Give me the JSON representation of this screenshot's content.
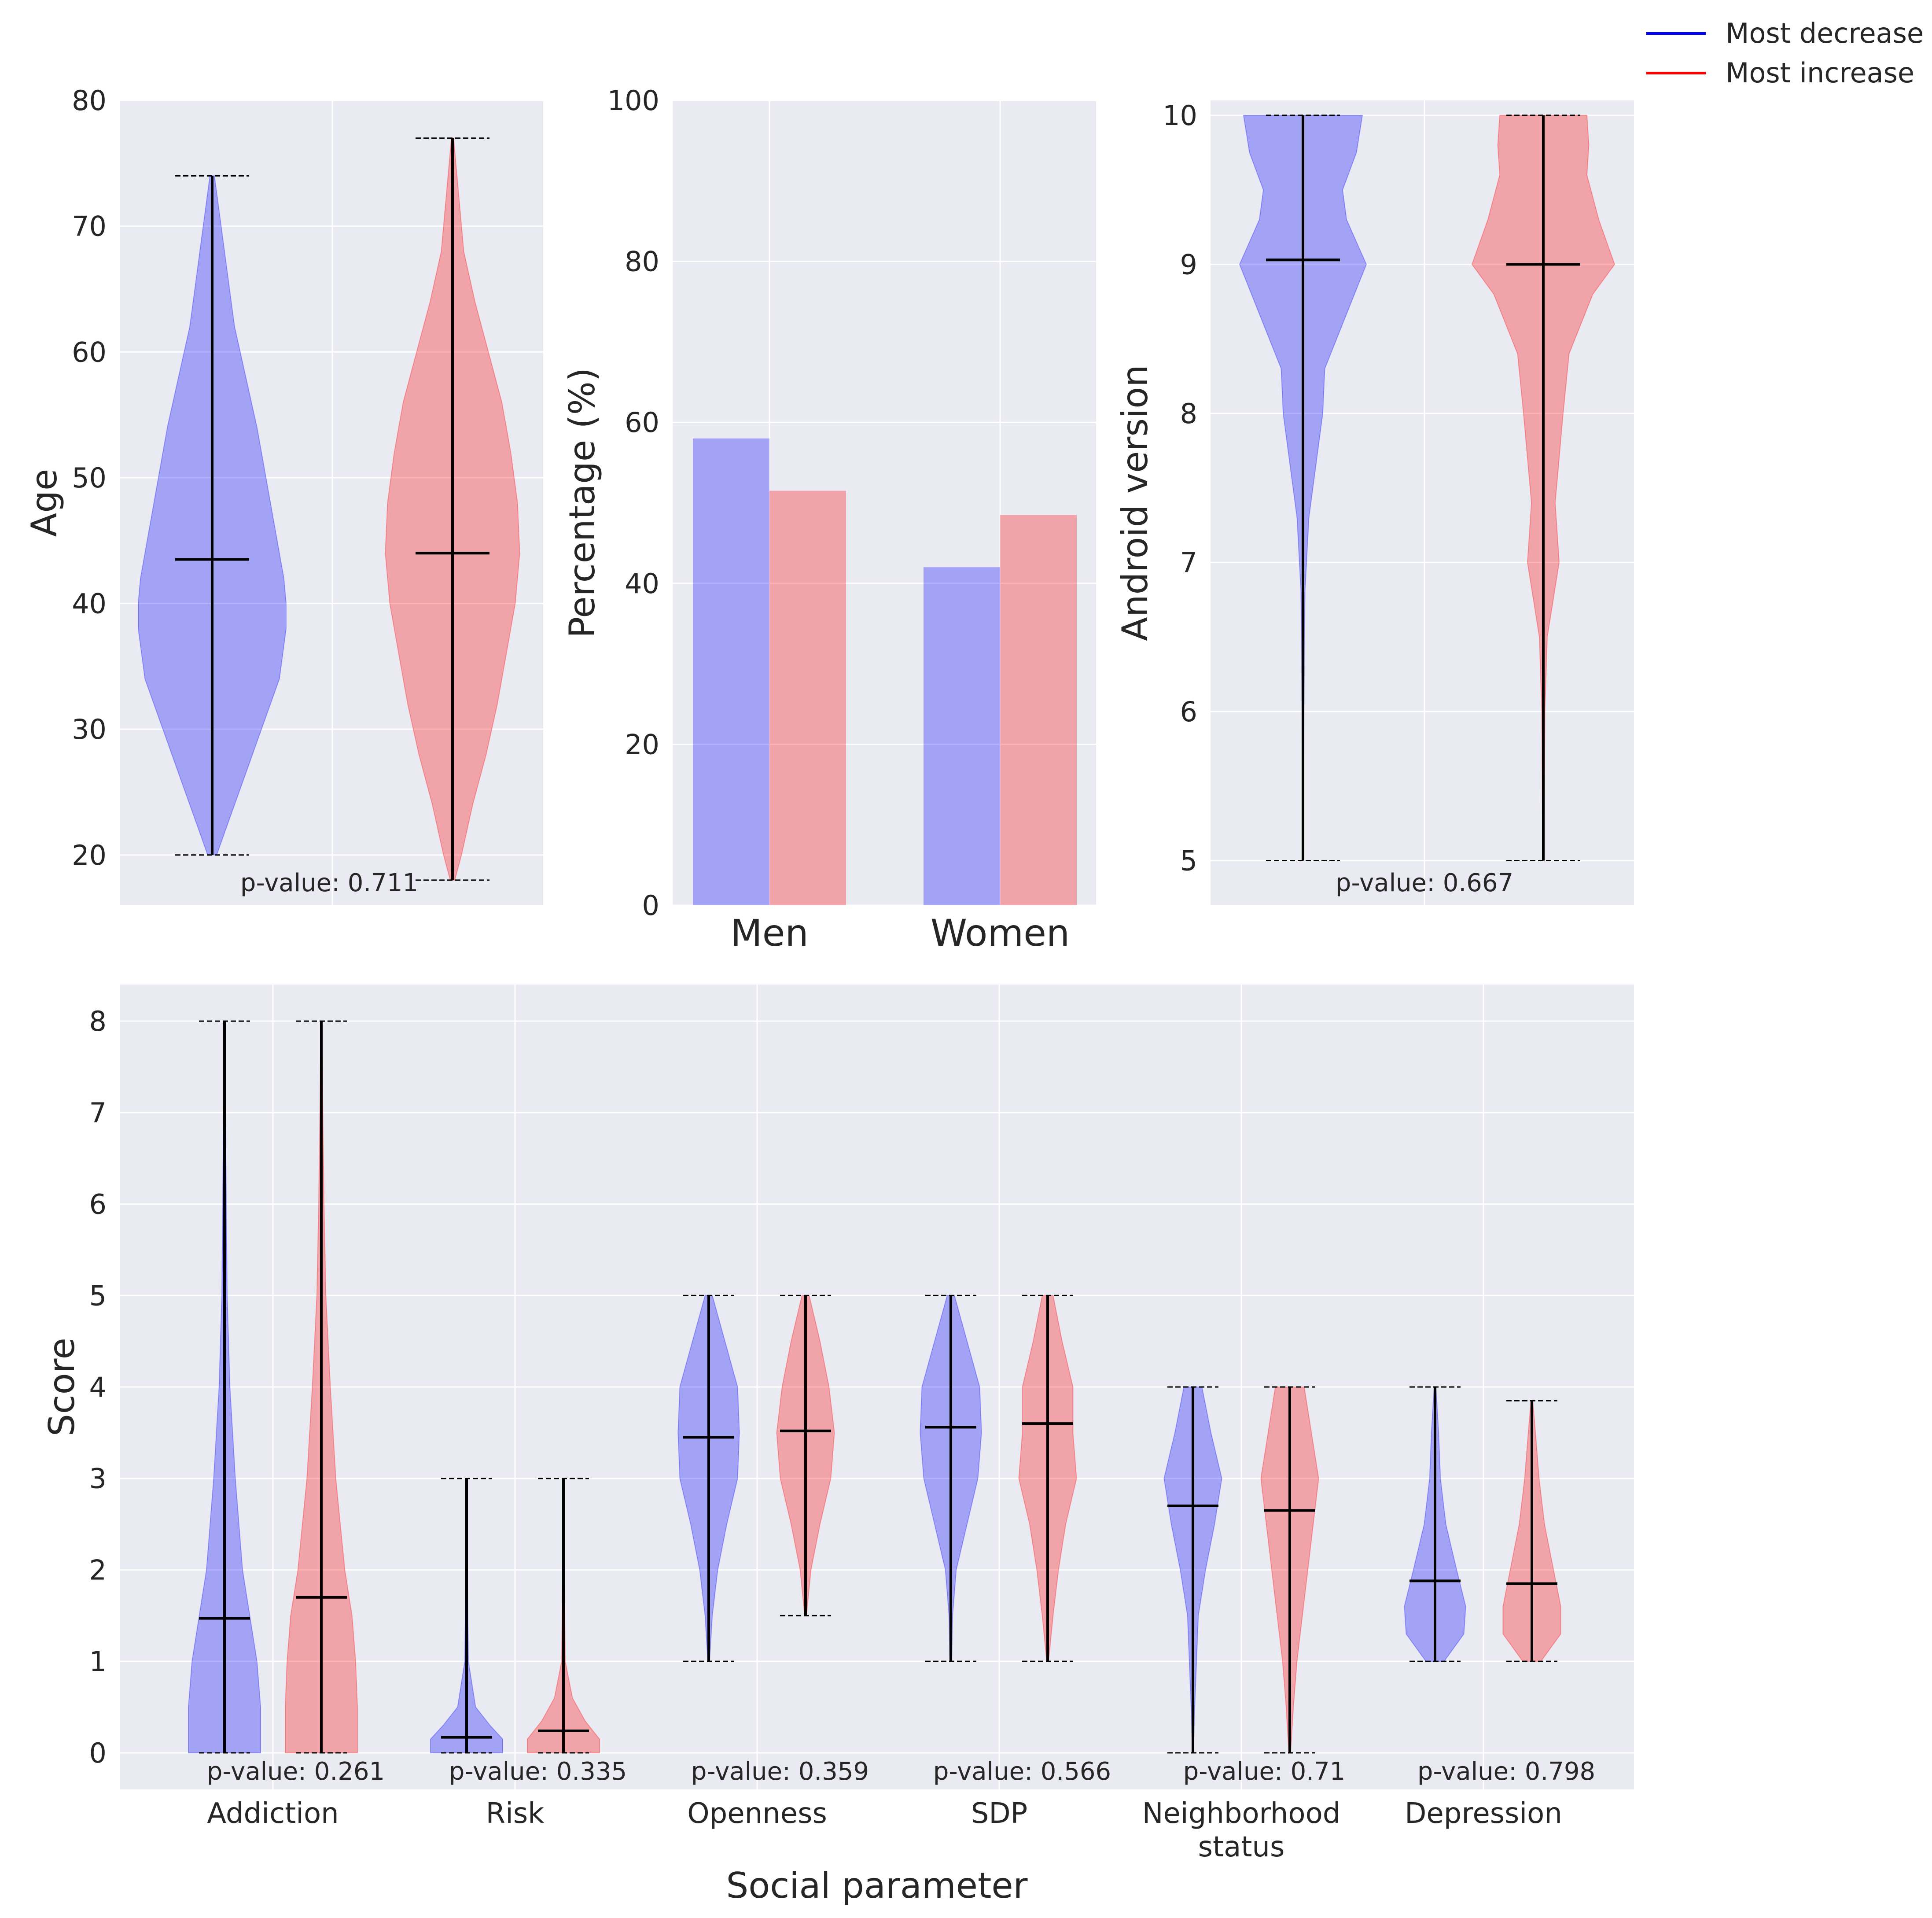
{
  "colors": {
    "decrease": "#0000ff",
    "increase": "#ff0000",
    "panel_bg": "#eaeaf2",
    "grid": "#ffffff",
    "stat_line": "#000000"
  },
  "legend": [
    {
      "label": "Most decrease",
      "color": "#0000ff"
    },
    {
      "label": "Most increase",
      "color": "#ff0000"
    }
  ],
  "chart_data": [
    {
      "id": "age",
      "type": "violin",
      "ylabel": "Age",
      "ylim": [
        16,
        80
      ],
      "yticks": [
        20,
        30,
        40,
        50,
        60,
        70,
        80
      ],
      "p_value_label": "p-value: 0.711",
      "groups": [
        {
          "series": "Most decrease",
          "min": 20,
          "max": 74,
          "mean": 43.5,
          "density": [
            [
              20,
              0.02
            ],
            [
              22,
              0.06
            ],
            [
              26,
              0.14
            ],
            [
              30,
              0.22
            ],
            [
              34,
              0.3
            ],
            [
              38,
              0.33
            ],
            [
              40,
              0.33
            ],
            [
              42,
              0.32
            ],
            [
              46,
              0.28
            ],
            [
              50,
              0.24
            ],
            [
              54,
              0.2
            ],
            [
              58,
              0.15
            ],
            [
              62,
              0.1
            ],
            [
              66,
              0.07
            ],
            [
              70,
              0.04
            ],
            [
              74,
              0.01
            ]
          ]
        },
        {
          "series": "Most increase",
          "min": 18,
          "max": 77,
          "mean": 44,
          "density": [
            [
              18,
              0.01
            ],
            [
              20,
              0.04
            ],
            [
              24,
              0.09
            ],
            [
              28,
              0.15
            ],
            [
              32,
              0.2
            ],
            [
              36,
              0.24
            ],
            [
              40,
              0.28
            ],
            [
              44,
              0.3
            ],
            [
              48,
              0.29
            ],
            [
              52,
              0.26
            ],
            [
              56,
              0.22
            ],
            [
              60,
              0.16
            ],
            [
              64,
              0.1
            ],
            [
              68,
              0.05
            ],
            [
              72,
              0.03
            ],
            [
              75,
              0.015
            ],
            [
              77,
              0.005
            ]
          ]
        }
      ]
    },
    {
      "id": "gender",
      "type": "bar",
      "ylabel": "Percentage (%)",
      "ylim": [
        0,
        100
      ],
      "yticks": [
        0,
        20,
        40,
        60,
        80,
        100
      ],
      "categories": [
        "Men",
        "Women"
      ],
      "series": [
        {
          "name": "Most decrease",
          "values": [
            58,
            42
          ]
        },
        {
          "name": "Most increase",
          "values": [
            51.5,
            48.5
          ]
        }
      ]
    },
    {
      "id": "android",
      "type": "violin",
      "ylabel": "Android version",
      "ylim": [
        4.7,
        10.1
      ],
      "yticks": [
        5,
        6,
        7,
        8,
        9,
        10
      ],
      "p_value_label": "p-value: 0.667",
      "groups": [
        {
          "series": "Most decrease",
          "min": 5,
          "max": 10,
          "mean": 9.03,
          "density": [
            [
              5,
              0.003
            ],
            [
              6,
              0.005
            ],
            [
              6.8,
              0.01
            ],
            [
              7.3,
              0.03
            ],
            [
              7.7,
              0.07
            ],
            [
              8,
              0.1
            ],
            [
              8.3,
              0.11
            ],
            [
              8.6,
              0.2
            ],
            [
              9,
              0.32
            ],
            [
              9.3,
              0.22
            ],
            [
              9.5,
              0.2
            ],
            [
              9.75,
              0.27
            ],
            [
              10,
              0.3
            ]
          ]
        },
        {
          "series": "Most increase",
          "min": 5,
          "max": 10,
          "mean": 9,
          "density": [
            [
              5,
              0.003
            ],
            [
              6,
              0.008
            ],
            [
              6.5,
              0.02
            ],
            [
              7,
              0.08
            ],
            [
              7.4,
              0.06
            ],
            [
              8,
              0.1
            ],
            [
              8.4,
              0.13
            ],
            [
              8.8,
              0.25
            ],
            [
              9,
              0.36
            ],
            [
              9.3,
              0.28
            ],
            [
              9.6,
              0.22
            ],
            [
              9.8,
              0.23
            ],
            [
              10,
              0.22
            ]
          ]
        }
      ]
    },
    {
      "id": "social",
      "type": "violin",
      "ylabel": "Score",
      "xlabel": "Social parameter",
      "ylim": [
        -0.4,
        8.4
      ],
      "yticks": [
        0,
        1,
        2,
        3,
        4,
        5,
        6,
        7,
        8
      ],
      "categories": [
        {
          "label": [
            "Addiction"
          ],
          "p_value_label": "p-value: 0.261",
          "groups": [
            {
              "series": "Most decrease",
              "min": 0,
              "max": 8,
              "mean": 1.47,
              "density": [
                [
                  0,
                  0.2
                ],
                [
                  0.5,
                  0.2
                ],
                [
                  1,
                  0.18
                ],
                [
                  1.5,
                  0.14
                ],
                [
                  2,
                  0.1
                ],
                [
                  3,
                  0.06
                ],
                [
                  4,
                  0.03
                ],
                [
                  5,
                  0.015
                ],
                [
                  6,
                  0.01
                ],
                [
                  7,
                  0.005
                ],
                [
                  8,
                  0.002
                ]
              ]
            },
            {
              "series": "Most increase",
              "min": 0,
              "max": 8,
              "mean": 1.7,
              "density": [
                [
                  0,
                  0.2
                ],
                [
                  0.5,
                  0.2
                ],
                [
                  1,
                  0.19
                ],
                [
                  1.5,
                  0.17
                ],
                [
                  2,
                  0.13
                ],
                [
                  3,
                  0.08
                ],
                [
                  4,
                  0.05
                ],
                [
                  5,
                  0.025
                ],
                [
                  6,
                  0.015
                ],
                [
                  7,
                  0.008
                ],
                [
                  8,
                  0.003
                ]
              ]
            }
          ]
        },
        {
          "label": [
            "Risk"
          ],
          "p_value_label": "p-value: 0.335",
          "groups": [
            {
              "series": "Most decrease",
              "min": 0,
              "max": 3,
              "mean": 0.17,
              "density": [
                [
                  0,
                  0.2
                ],
                [
                  0.15,
                  0.2
                ],
                [
                  0.3,
                  0.13
                ],
                [
                  0.5,
                  0.05
                ],
                [
                  1,
                  0.01
                ],
                [
                  2,
                  0.004
                ],
                [
                  3,
                  0.002
                ]
              ]
            },
            {
              "series": "Most increase",
              "min": 0,
              "max": 3,
              "mean": 0.24,
              "density": [
                [
                  0,
                  0.2
                ],
                [
                  0.15,
                  0.2
                ],
                [
                  0.35,
                  0.12
                ],
                [
                  0.6,
                  0.05
                ],
                [
                  1,
                  0.01
                ],
                [
                  2,
                  0.004
                ],
                [
                  3,
                  0.002
                ]
              ]
            }
          ]
        },
        {
          "label": [
            "Openness"
          ],
          "p_value_label": "p-value: 0.359",
          "groups": [
            {
              "series": "Most decrease",
              "min": 1,
              "max": 5,
              "mean": 3.45,
              "density": [
                [
                  1,
                  0.005
                ],
                [
                  1.5,
                  0.02
                ],
                [
                  2,
                  0.05
                ],
                [
                  2.5,
                  0.1
                ],
                [
                  3,
                  0.16
                ],
                [
                  3.5,
                  0.17
                ],
                [
                  4,
                  0.16
                ],
                [
                  4.5,
                  0.09
                ],
                [
                  5,
                  0.02
                ]
              ]
            },
            {
              "series": "Most increase",
              "min": 1.5,
              "max": 5,
              "mean": 3.52,
              "density": [
                [
                  1.5,
                  0.005
                ],
                [
                  2,
                  0.03
                ],
                [
                  2.5,
                  0.08
                ],
                [
                  3,
                  0.14
                ],
                [
                  3.5,
                  0.16
                ],
                [
                  4,
                  0.13
                ],
                [
                  4.5,
                  0.08
                ],
                [
                  5,
                  0.02
                ]
              ]
            }
          ]
        },
        {
          "label": [
            "SDP"
          ],
          "p_value_label": "p-value: 0.566",
          "groups": [
            {
              "series": "Most decrease",
              "min": 1,
              "max": 5,
              "mean": 3.56,
              "density": [
                [
                  1,
                  0.005
                ],
                [
                  1.5,
                  0.01
                ],
                [
                  2,
                  0.03
                ],
                [
                  2.5,
                  0.09
                ],
                [
                  3,
                  0.15
                ],
                [
                  3.5,
                  0.17
                ],
                [
                  4,
                  0.16
                ],
                [
                  4.5,
                  0.09
                ],
                [
                  5,
                  0.02
                ]
              ]
            },
            {
              "series": "Most increase",
              "min": 1,
              "max": 5,
              "mean": 3.6,
              "density": [
                [
                  1,
                  0.005
                ],
                [
                  1.5,
                  0.03
                ],
                [
                  2,
                  0.06
                ],
                [
                  2.5,
                  0.1
                ],
                [
                  3,
                  0.16
                ],
                [
                  3.5,
                  0.14
                ],
                [
                  4,
                  0.14
                ],
                [
                  4.5,
                  0.08
                ],
                [
                  5,
                  0.03
                ]
              ]
            }
          ]
        },
        {
          "label": [
            "Neighborhood",
            "status"
          ],
          "p_value_label": "p-value: 0.71",
          "groups": [
            {
              "series": "Most decrease",
              "min": 0,
              "max": 4,
              "mean": 2.7,
              "density": [
                [
                  0,
                  0.003
                ],
                [
                  0.5,
                  0.01
                ],
                [
                  1,
                  0.02
                ],
                [
                  1.5,
                  0.03
                ],
                [
                  2,
                  0.07
                ],
                [
                  2.5,
                  0.12
                ],
                [
                  3,
                  0.16
                ],
                [
                  3.5,
                  0.1
                ],
                [
                  4,
                  0.05
                ]
              ]
            },
            {
              "series": "Most increase",
              "min": 0,
              "max": 4,
              "mean": 2.65,
              "density": [
                [
                  0,
                  0.005
                ],
                [
                  0.5,
                  0.02
                ],
                [
                  1,
                  0.04
                ],
                [
                  1.5,
                  0.07
                ],
                [
                  2,
                  0.1
                ],
                [
                  2.5,
                  0.13
                ],
                [
                  3,
                  0.16
                ],
                [
                  3.5,
                  0.12
                ],
                [
                  4,
                  0.08
                ]
              ]
            }
          ]
        },
        {
          "label": [
            "Depression"
          ],
          "p_value_label": "p-value: 0.798",
          "groups": [
            {
              "series": "Most decrease",
              "min": 1,
              "max": 4,
              "mean": 1.88,
              "density": [
                [
                  1,
                  0.05
                ],
                [
                  1.3,
                  0.16
                ],
                [
                  1.6,
                  0.17
                ],
                [
                  2,
                  0.12
                ],
                [
                  2.5,
                  0.06
                ],
                [
                  3,
                  0.03
                ],
                [
                  3.5,
                  0.02
                ],
                [
                  4,
                  0.005
                ]
              ]
            },
            {
              "series": "Most increase",
              "min": 1,
              "max": 3.85,
              "mean": 1.85,
              "density": [
                [
                  1,
                  0.05
                ],
                [
                  1.3,
                  0.16
                ],
                [
                  1.6,
                  0.16
                ],
                [
                  2,
                  0.12
                ],
                [
                  2.5,
                  0.07
                ],
                [
                  3,
                  0.04
                ],
                [
                  3.5,
                  0.02
                ],
                [
                  3.85,
                  0.005
                ]
              ]
            }
          ]
        }
      ]
    }
  ]
}
